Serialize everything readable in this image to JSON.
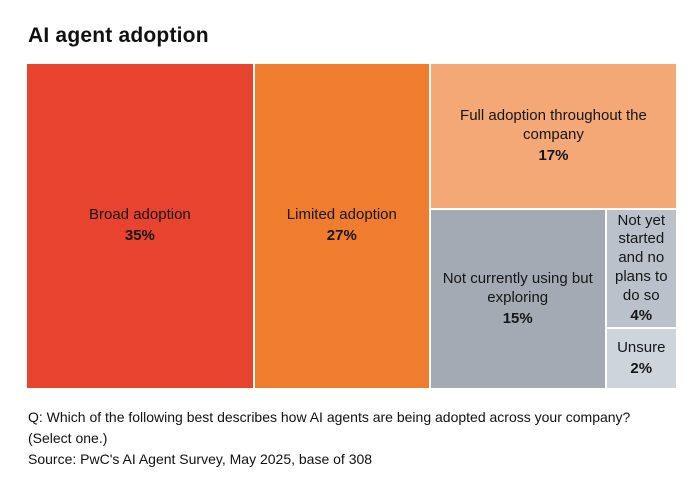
{
  "page_title": "AI agent adoption",
  "chart_data": {
    "type": "treemap",
    "title": "AI agent adoption",
    "unit": "percent",
    "total": 100,
    "segments": [
      {
        "label": "Broad adoption",
        "value": 35,
        "display_value": "35%",
        "color": "#E8432E"
      },
      {
        "label": "Limited adoption",
        "value": 27,
        "display_value": "27%",
        "color": "#F07D2E"
      },
      {
        "label": "Full adoption throughout the company",
        "value": 17,
        "display_value": "17%",
        "color": "#F4A876"
      },
      {
        "label": "Not currently using but exploring",
        "value": 15,
        "display_value": "15%",
        "color": "#A3AAB4"
      },
      {
        "label": "Not yet started and no plans to do so",
        "value": 4,
        "display_value": "4%",
        "color": "#BAC1CB"
      },
      {
        "label": "Unsure",
        "value": 2,
        "display_value": "2%",
        "color": "#CED4DC"
      }
    ],
    "layout_hint": "mekko-style treemap: full-height columns Broad 35 and Limited 27; right panel width 38 with Full-adoption 17 on top, bottom row split into Not-currently-using 15 and a right stack of Not-yet-started 4 over Unsure 2; thin white gaps between tiles; no axes, no legend"
  },
  "footer": {
    "question": "Q: Which of the following best describes how AI agents are being adopted across your company? (Select one.)",
    "source": "Source: PwC's AI Agent Survey, May 2025, base of 308"
  }
}
